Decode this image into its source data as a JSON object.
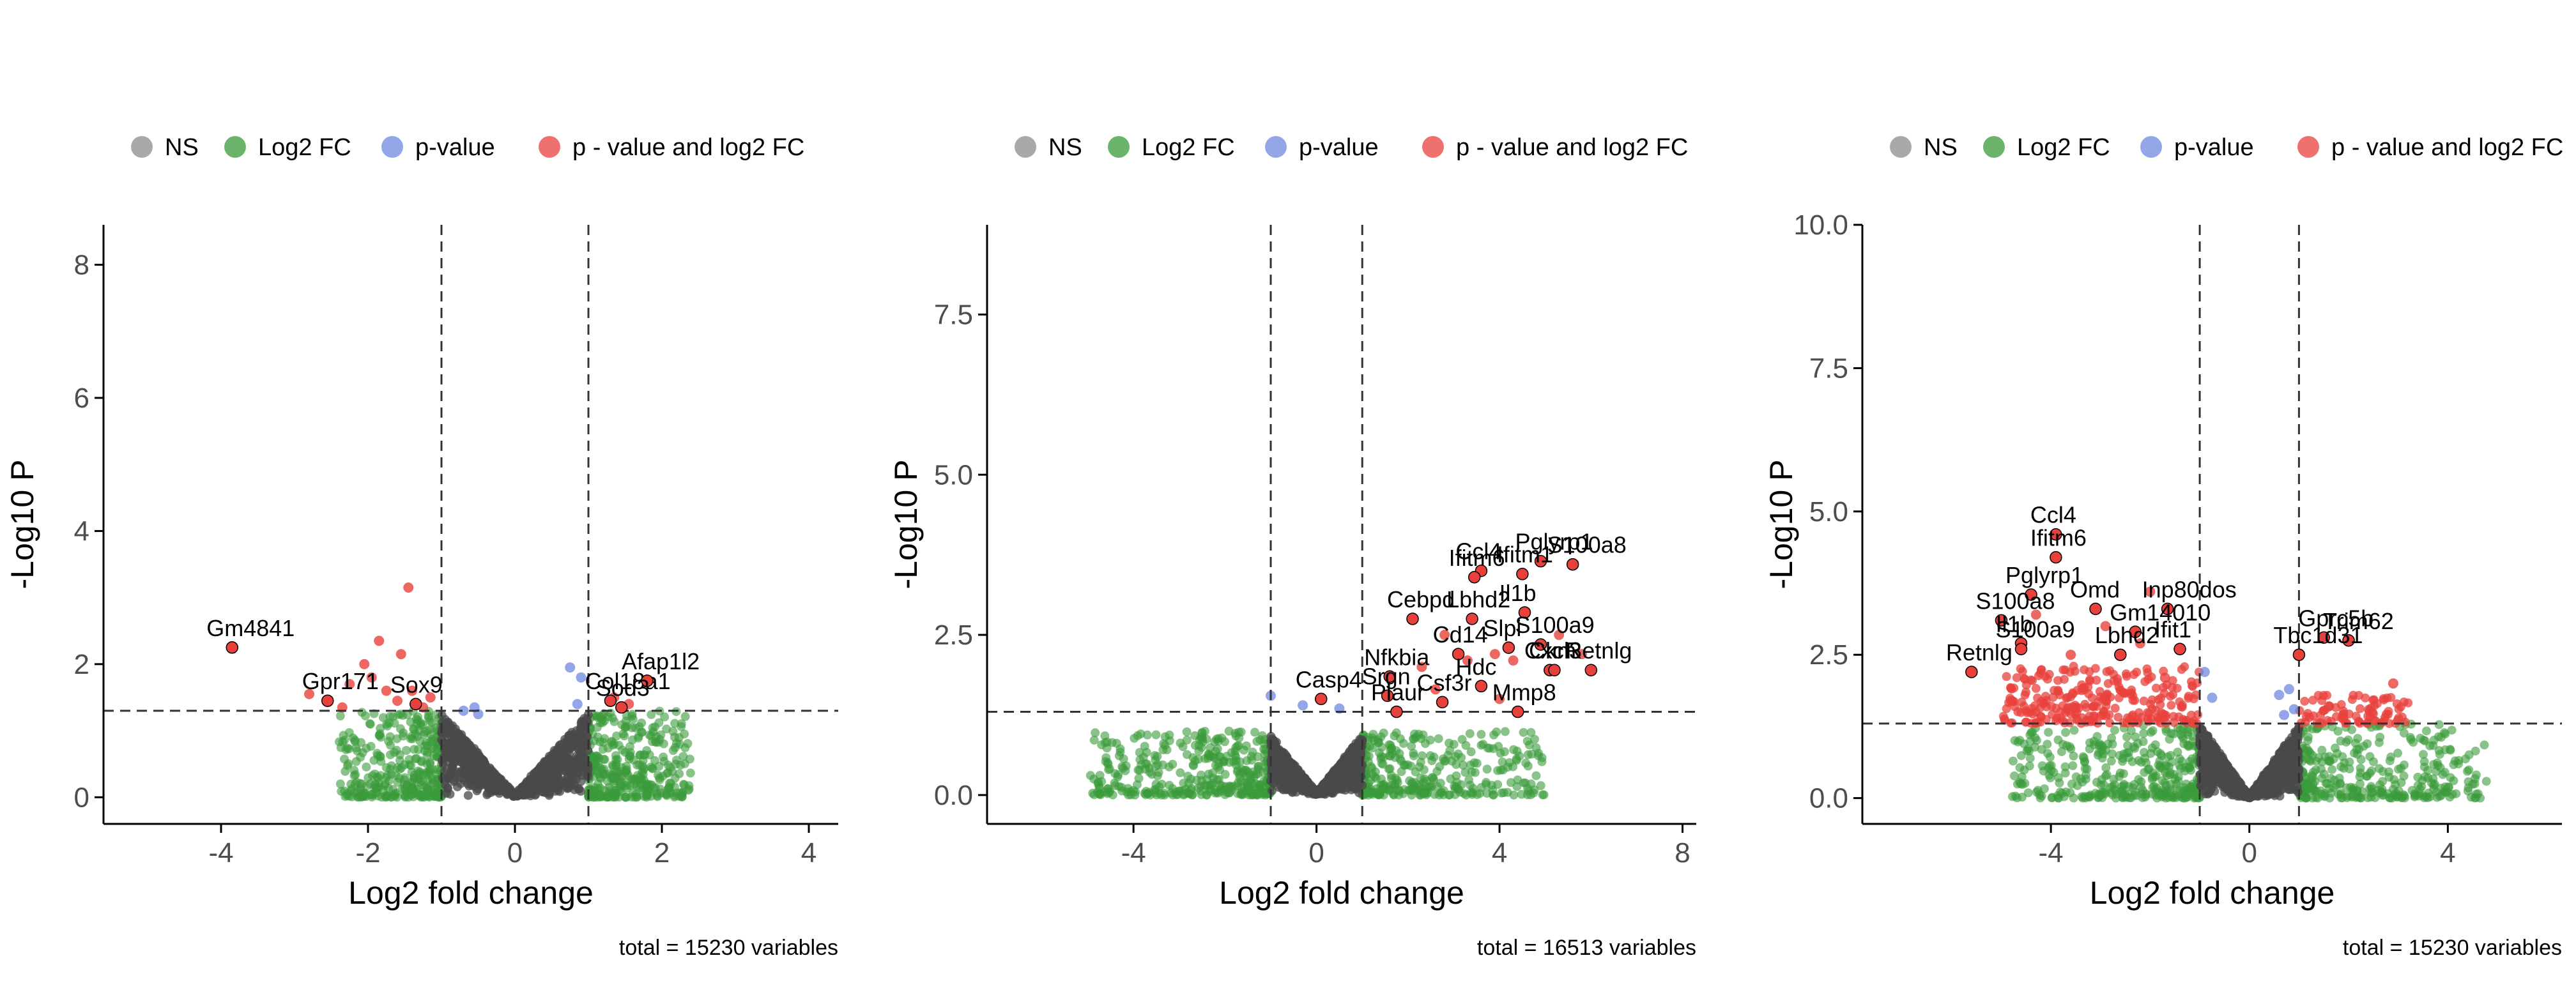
{
  "legend": {
    "entries": [
      {
        "key": "ns",
        "label": "NS",
        "color": "#8c8c8c"
      },
      {
        "key": "fc",
        "label": "Log2 FC",
        "color": "#3a9b3a"
      },
      {
        "key": "p",
        "label": "p-value",
        "color": "#6f88e0"
      },
      {
        "key": "pfc",
        "label": "p - value and log2 FC",
        "color": "#e8413c"
      }
    ]
  },
  "chart_data": [
    {
      "type": "scatter",
      "xlabel": "Log2 fold change",
      "ylabel": "-Log10 P",
      "caption": "total = 15230 variables",
      "xlim": [
        -5.6,
        4.4
      ],
      "ylim": [
        -0.4,
        8.6
      ],
      "xticks": [
        -4,
        -2,
        0,
        2,
        4
      ],
      "yticks": [
        0,
        2,
        4,
        6,
        8
      ],
      "fc_cutoff": 1,
      "p_cutoff_neglog10": 1.3,
      "labeled_points": [
        {
          "label": "Gm4841",
          "x": -3.85,
          "y": 2.25
        },
        {
          "label": "Gpr171",
          "x": -2.55,
          "y": 1.45
        },
        {
          "label": "Sox9",
          "x": -1.35,
          "y": 1.4
        },
        {
          "label": "Col18a1",
          "x": 1.3,
          "y": 1.45
        },
        {
          "label": "Afap1l2",
          "x": 1.8,
          "y": 1.75
        },
        {
          "label": "Sod3",
          "x": 1.45,
          "y": 1.35
        }
      ],
      "significant_points": [
        {
          "x": -1.45,
          "y": 3.15
        },
        {
          "x": -1.85,
          "y": 2.35
        },
        {
          "x": -2.05,
          "y": 2.0
        },
        {
          "x": -1.95,
          "y": 1.8
        },
        {
          "x": -1.55,
          "y": 2.15
        },
        {
          "x": -1.75,
          "y": 1.6
        },
        {
          "x": -2.25,
          "y": 1.7
        },
        {
          "x": -1.4,
          "y": 1.6
        },
        {
          "x": -1.15,
          "y": 1.5
        },
        {
          "x": -1.6,
          "y": 1.45
        },
        {
          "x": -2.8,
          "y": 1.55
        },
        {
          "x": -1.25,
          "y": 1.35
        },
        {
          "x": -2.35,
          "y": 1.35
        },
        {
          "x": 1.35,
          "y": 1.5
        },
        {
          "x": 1.55,
          "y": 1.4
        }
      ],
      "pvalue_points": [
        {
          "x": 0.75,
          "y": 1.95
        },
        {
          "x": 0.9,
          "y": 1.8
        },
        {
          "x": 0.85,
          "y": 1.4
        },
        {
          "x": -0.55,
          "y": 1.35
        },
        {
          "x": -0.5,
          "y": 1.25
        },
        {
          "x": -0.7,
          "y": 1.3
        }
      ],
      "ns_cloud": {
        "xmin": -1.0,
        "xmax": 1.0,
        "ymax": 1.25
      },
      "fc_cloud": {
        "xmin": -2.4,
        "xmax": 2.4,
        "ymax": 1.3
      }
    },
    {
      "type": "scatter",
      "xlabel": "Log2 fold change",
      "ylabel": "-Log10 P",
      "caption": "total = 16513 variables",
      "xlim": [
        -7.2,
        8.3
      ],
      "ylim": [
        -0.45,
        8.9
      ],
      "xticks": [
        -4,
        0,
        4,
        8
      ],
      "yticks": [
        0.0,
        2.5,
        5.0,
        7.5
      ],
      "fc_cutoff": 1,
      "p_cutoff_neglog10": 1.3,
      "labeled_points": [
        {
          "label": "Ccl4",
          "x": 3.6,
          "y": 3.5
        },
        {
          "label": "Pglyrp1",
          "x": 4.9,
          "y": 3.65
        },
        {
          "label": "Ifitm6",
          "x": 3.45,
          "y": 3.4
        },
        {
          "label": "Ifitm1",
          "x": 4.5,
          "y": 3.45
        },
        {
          "label": "S100a8",
          "x": 5.6,
          "y": 3.6
        },
        {
          "label": "Cebpd",
          "x": 2.1,
          "y": 2.75
        },
        {
          "label": "Lbhd2",
          "x": 3.4,
          "y": 2.75
        },
        {
          "label": "Il1b",
          "x": 4.55,
          "y": 2.85
        },
        {
          "label": "Cd14",
          "x": 3.1,
          "y": 2.2
        },
        {
          "label": "Slpi",
          "x": 4.2,
          "y": 2.3
        },
        {
          "label": "S100a9",
          "x": 4.9,
          "y": 2.35
        },
        {
          "label": "Nfkbia",
          "x": 1.6,
          "y": 1.85
        },
        {
          "label": "Hdc",
          "x": 3.6,
          "y": 1.7
        },
        {
          "label": "Cxcl3",
          "x": 5.1,
          "y": 1.95
        },
        {
          "label": "Retnlg",
          "x": 6.0,
          "y": 1.95
        },
        {
          "label": "Casp4",
          "x": 0.1,
          "y": 1.5
        },
        {
          "label": "Srgn",
          "x": 1.55,
          "y": 1.55
        },
        {
          "label": "Csf3r",
          "x": 2.75,
          "y": 1.45
        },
        {
          "label": "Ckm",
          "x": 5.2,
          "y": 1.95
        },
        {
          "label": "Plaur",
          "x": 1.75,
          "y": 1.3
        },
        {
          "label": "Mmp8",
          "x": 4.4,
          "y": 1.3
        }
      ],
      "significant_points": [
        {
          "x": 2.3,
          "y": 2.0
        },
        {
          "x": 2.8,
          "y": 2.5
        },
        {
          "x": 3.9,
          "y": 2.2
        },
        {
          "x": 4.3,
          "y": 2.1
        },
        {
          "x": 5.3,
          "y": 2.5
        },
        {
          "x": 3.3,
          "y": 2.1
        },
        {
          "x": 2.6,
          "y": 1.65
        },
        {
          "x": 4.0,
          "y": 1.5
        },
        {
          "x": 5.8,
          "y": 2.2
        }
      ],
      "pvalue_points": [
        {
          "x": -1.0,
          "y": 1.55
        },
        {
          "x": -0.3,
          "y": 1.4
        },
        {
          "x": 0.5,
          "y": 1.35
        }
      ],
      "ns_cloud": {
        "xmin": -1.0,
        "xmax": 1.0,
        "ymax": 0.9
      },
      "fc_cloud": {
        "xmin": -5.0,
        "xmax": 5.0,
        "ymax": 1.0
      }
    },
    {
      "type": "scatter",
      "xlabel": "Log2 fold change",
      "ylabel": "-Log10 P",
      "caption": "total = 15230 variables",
      "xlim": [
        -7.8,
        6.3
      ],
      "ylim": [
        -0.45,
        10.0
      ],
      "xticks": [
        -4,
        0,
        4
      ],
      "yticks": [
        0.0,
        2.5,
        5.0,
        7.5,
        10.0
      ],
      "fc_cutoff": 1,
      "p_cutoff_neglog10": 1.3,
      "labeled_points": [
        {
          "label": "Ccl4",
          "x": -3.9,
          "y": 4.6
        },
        {
          "label": "Ifitm6",
          "x": -3.9,
          "y": 4.2
        },
        {
          "label": "Pglyrp1",
          "x": -4.4,
          "y": 3.55
        },
        {
          "label": "Inp80dos",
          "x": -1.65,
          "y": 3.3
        },
        {
          "label": "Omd",
          "x": -3.1,
          "y": 3.3
        },
        {
          "label": "Gm14010",
          "x": -2.3,
          "y": 2.9
        },
        {
          "label": "S100a8",
          "x": -5.0,
          "y": 3.1
        },
        {
          "label": "Il1b",
          "x": -4.6,
          "y": 2.7
        },
        {
          "label": "Gprc5b",
          "x": 1.5,
          "y": 2.8
        },
        {
          "label": "Trim62",
          "x": 2.0,
          "y": 2.75
        },
        {
          "label": "Ifit1",
          "x": -1.4,
          "y": 2.6
        },
        {
          "label": "Lbhd2",
          "x": -2.6,
          "y": 2.5
        },
        {
          "label": "S100a9",
          "x": -4.6,
          "y": 2.6
        },
        {
          "label": "Tbc1d31",
          "x": 1.0,
          "y": 2.5
        },
        {
          "label": "Retnlg",
          "x": -5.6,
          "y": 2.2
        }
      ],
      "significant_points": [
        {
          "x": -4.3,
          "y": 3.2
        },
        {
          "x": -2.0,
          "y": 3.6
        },
        {
          "x": -2.9,
          "y": 3.0
        },
        {
          "x": -1.7,
          "y": 2.1
        },
        {
          "x": -3.6,
          "y": 2.5
        },
        {
          "x": 2.9,
          "y": 2.0
        },
        {
          "x": -4.8,
          "y": 1.7
        },
        {
          "x": 1.6,
          "y": 1.6
        },
        {
          "x": -2.2,
          "y": 2.7
        }
      ],
      "pvalue_points": [
        {
          "x": -0.9,
          "y": 2.2
        },
        {
          "x": -0.75,
          "y": 1.75
        },
        {
          "x": 0.6,
          "y": 1.8
        },
        {
          "x": 0.8,
          "y": 1.9
        },
        {
          "x": 0.9,
          "y": 1.55
        },
        {
          "x": 0.7,
          "y": 1.45
        }
      ],
      "dense_sig_up": {
        "xmin": -5.0,
        "xmax": -1.0,
        "ymin": 1.3,
        "ymax": 2.3
      },
      "dense_sig_right": {
        "xmin": 1.0,
        "xmax": 3.2,
        "ymin": 1.3,
        "ymax": 1.8
      },
      "ns_cloud": {
        "xmin": -1.0,
        "xmax": 1.0,
        "ymax": 1.25
      },
      "fc_cloud": {
        "xmin": -4.8,
        "xmax": 4.8,
        "ymax": 1.3
      }
    }
  ]
}
